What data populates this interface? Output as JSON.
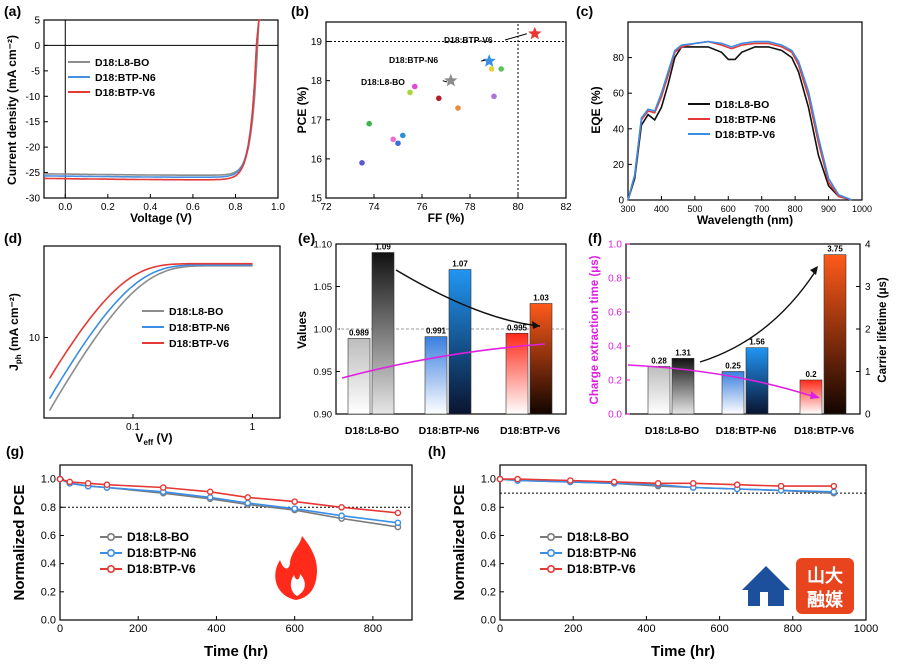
{
  "chart_data": [
    {
      "panel": "(a)",
      "type": "line",
      "xlabel": "Voltage (V)",
      "ylabel": "Current density (mA cm⁻²)",
      "xlim": [
        -0.1,
        1.0
      ],
      "ylim": [
        -30,
        5
      ],
      "xticks": [
        "0.0",
        "0.2",
        "0.4",
        "0.6",
        "0.8",
        "1.0"
      ],
      "yticks": [
        "5",
        "0",
        "-5",
        "-10",
        "-15",
        "-20",
        "-25",
        "-30"
      ],
      "series": [
        {
          "name": "D18:L8-BO",
          "color": "#8c8c8c",
          "jsc": -25.3,
          "voc": 0.91
        },
        {
          "name": "D18:BTP-N6",
          "color": "#4a90e2",
          "jsc": -25.7,
          "voc": 0.905
        },
        {
          "name": "D18:BTP-V6",
          "color": "#e53935",
          "jsc": -26.2,
          "voc": 0.905
        }
      ]
    },
    {
      "panel": "(b)",
      "type": "scatter",
      "xlabel": "FF (%)",
      "ylabel": "PCE (%)",
      "xlim": [
        72,
        82
      ],
      "ylim": [
        15,
        19.5
      ],
      "xticks": [
        "72",
        "74",
        "76",
        "78",
        "80",
        "82"
      ],
      "yticks": [
        "15",
        "16",
        "17",
        "18",
        "19"
      ],
      "ref_x": 80,
      "ref_y": 19,
      "highlight": [
        {
          "name": "D18:BTP-V6",
          "x": 80.7,
          "y": 19.2,
          "color": "#e53935"
        },
        {
          "name": "D18:BTP-N6",
          "x": 78.8,
          "y": 18.5,
          "color": "#3a8ee6"
        },
        {
          "name": "D18:L8-BO",
          "x": 77.2,
          "y": 18.0,
          "color": "#8c8c8c"
        }
      ],
      "points": [
        {
          "x": 73.5,
          "y": 15.9,
          "color": "#5a58d6"
        },
        {
          "x": 73.8,
          "y": 16.9,
          "color": "#3cb54a"
        },
        {
          "x": 74.8,
          "y": 16.5,
          "color": "#f06bd6"
        },
        {
          "x": 75.0,
          "y": 16.4,
          "color": "#3a70d9"
        },
        {
          "x": 75.2,
          "y": 16.6,
          "color": "#2b8fd6"
        },
        {
          "x": 75.5,
          "y": 17.7,
          "color": "#a7d63c"
        },
        {
          "x": 75.7,
          "y": 17.85,
          "color": "#e04ad6"
        },
        {
          "x": 76.7,
          "y": 17.55,
          "color": "#b0202a"
        },
        {
          "x": 77.5,
          "y": 17.3,
          "color": "#f08a3a"
        },
        {
          "x": 78.9,
          "y": 18.3,
          "color": "#e8d23c"
        },
        {
          "x": 79.3,
          "y": 18.3,
          "color": "#5cc25c"
        },
        {
          "x": 79.0,
          "y": 17.6,
          "color": "#b070e0"
        }
      ]
    },
    {
      "panel": "(c)",
      "type": "line",
      "xlabel": "Wavelength (nm)",
      "ylabel": "EQE (%)",
      "xlim": [
        300,
        1000
      ],
      "ylim": [
        0,
        100
      ],
      "xticks": [
        "300",
        "400",
        "500",
        "600",
        "700",
        "800",
        "900",
        "1000"
      ],
      "yticks": [
        "0",
        "20",
        "40",
        "60",
        "80"
      ],
      "series": [
        {
          "name": "D18:L8-BO",
          "color": "#111111",
          "values": [
            [
              300,
              0
            ],
            [
              320,
              12
            ],
            [
              340,
              42
            ],
            [
              360,
              48
            ],
            [
              380,
              45
            ],
            [
              400,
              52
            ],
            [
              420,
              65
            ],
            [
              440,
              80
            ],
            [
              460,
              86
            ],
            [
              500,
              86
            ],
            [
              540,
              86
            ],
            [
              580,
              83
            ],
            [
              600,
              79
            ],
            [
              620,
              79
            ],
            [
              640,
              83
            ],
            [
              680,
              86
            ],
            [
              720,
              86
            ],
            [
              760,
              84
            ],
            [
              790,
              80
            ],
            [
              810,
              72
            ],
            [
              840,
              52
            ],
            [
              870,
              25
            ],
            [
              900,
              8
            ],
            [
              930,
              2
            ],
            [
              970,
              0
            ]
          ]
        },
        {
          "name": "D18:BTP-N6",
          "color": "#e53935",
          "values": [
            [
              300,
              0
            ],
            [
              320,
              14
            ],
            [
              340,
              45
            ],
            [
              360,
              50
            ],
            [
              380,
              49
            ],
            [
              400,
              58
            ],
            [
              420,
              70
            ],
            [
              440,
              83
            ],
            [
              460,
              86
            ],
            [
              500,
              88
            ],
            [
              540,
              89
            ],
            [
              580,
              87
            ],
            [
              610,
              85
            ],
            [
              640,
              87
            ],
            [
              680,
              88
            ],
            [
              720,
              88
            ],
            [
              760,
              86
            ],
            [
              790,
              83
            ],
            [
              810,
              76
            ],
            [
              840,
              58
            ],
            [
              870,
              32
            ],
            [
              900,
              10
            ],
            [
              930,
              2
            ],
            [
              970,
              0
            ]
          ]
        },
        {
          "name": "D18:BTP-V6",
          "color": "#3a8ee6",
          "values": [
            [
              300,
              0
            ],
            [
              320,
              14
            ],
            [
              340,
              46
            ],
            [
              360,
              51
            ],
            [
              380,
              50
            ],
            [
              400,
              60
            ],
            [
              420,
              72
            ],
            [
              440,
              84
            ],
            [
              460,
              87
            ],
            [
              500,
              88
            ],
            [
              540,
              89
            ],
            [
              580,
              88
            ],
            [
              610,
              86
            ],
            [
              640,
              88
            ],
            [
              680,
              89
            ],
            [
              720,
              89
            ],
            [
              760,
              87
            ],
            [
              790,
              84
            ],
            [
              810,
              78
            ],
            [
              840,
              61
            ],
            [
              870,
              35
            ],
            [
              900,
              12
            ],
            [
              930,
              3
            ],
            [
              970,
              0
            ]
          ]
        }
      ]
    },
    {
      "panel": "(d)",
      "type": "line",
      "xlabel": "V",
      "xlabel_sub": "eff",
      "xlabel_unit": " (V)",
      "ylabel": "J",
      "ylabel_sub": "ph",
      "ylabel_unit": " (mA cm⁻²)",
      "xscale": "log",
      "yscale": "log",
      "xticks": [
        "0.1",
        "1"
      ],
      "yticks": [
        "10"
      ],
      "series": [
        {
          "name": "D18:L8-BO",
          "color": "#8c8c8c"
        },
        {
          "name": "D18:BTP-N6",
          "color": "#3a8ee6"
        },
        {
          "name": "D18:BTP-V6",
          "color": "#e53935"
        }
      ]
    },
    {
      "panel": "(e)",
      "type": "bar",
      "ylabel": "Values",
      "ylim": [
        0.9,
        1.1
      ],
      "yticks": [
        "0.90",
        "0.95",
        "1.00",
        "1.05",
        "1.10"
      ],
      "categories": [
        "D18:L8-BO",
        "D18:BTP-N6",
        "D18:BTP-V6"
      ],
      "series": [
        {
          "name": "left",
          "values": [
            0.989,
            0.991,
            0.995
          ],
          "labels": [
            "0.989",
            "0.991",
            "0.995"
          ]
        },
        {
          "name": "right",
          "values": [
            1.09,
            1.07,
            1.03
          ],
          "labels": [
            "1.09",
            "1.07",
            "1.03"
          ]
        }
      ]
    },
    {
      "panel": "(f)",
      "type": "bar",
      "ylabel_left": "Charge extraction time (μs)",
      "ylabel_right": "Carrier lifetime (μs)",
      "ylim_left": [
        0,
        1.0
      ],
      "ylim_right": [
        0,
        4
      ],
      "yticks_left": [
        "0.0",
        "0.2",
        "0.4",
        "0.6",
        "0.8",
        "1.0"
      ],
      "yticks_right": [
        "0",
        "1",
        "2",
        "3",
        "4"
      ],
      "categories": [
        "D18:L8-BO",
        "D18:BTP-N6",
        "D18:BTP-V6"
      ],
      "series": [
        {
          "name": "Charge extraction time",
          "axis": "left",
          "values": [
            0.28,
            0.25,
            0.2
          ],
          "labels": [
            "0.28",
            "0.25",
            "0.2"
          ]
        },
        {
          "name": "Carrier lifetime",
          "axis": "right",
          "values": [
            1.31,
            1.56,
            3.75
          ],
          "labels": [
            "1.31",
            "1.56",
            "3.75"
          ]
        }
      ]
    },
    {
      "panel": "(g)",
      "type": "line",
      "xlabel": "Time (hr)",
      "ylabel": "Normalized PCE",
      "xlim": [
        0,
        900
      ],
      "ylim": [
        0,
        1.1
      ],
      "xticks": [
        "0",
        "200",
        "400",
        "600",
        "800"
      ],
      "yticks": [
        "0.0",
        "0.2",
        "0.4",
        "0.6",
        "0.8",
        "1.0"
      ],
      "ref_y": 0.8,
      "series": [
        {
          "name": "D18:L8-BO",
          "color": "#7a7a7a",
          "x": [
            0,
            25,
            72,
            120,
            264,
            384,
            480,
            600,
            720,
            864
          ],
          "y": [
            1.0,
            0.97,
            0.95,
            0.94,
            0.9,
            0.86,
            0.82,
            0.78,
            0.72,
            0.66
          ]
        },
        {
          "name": "D18:BTP-N6",
          "color": "#3a8ee6",
          "x": [
            0,
            25,
            72,
            120,
            264,
            384,
            480,
            600,
            720,
            864
          ],
          "y": [
            1.0,
            0.97,
            0.95,
            0.94,
            0.91,
            0.87,
            0.83,
            0.79,
            0.74,
            0.69
          ]
        },
        {
          "name": "D18:BTP-V6",
          "color": "#e53935",
          "x": [
            0,
            25,
            72,
            120,
            264,
            384,
            480,
            600,
            720,
            864
          ],
          "y": [
            1.0,
            0.98,
            0.97,
            0.96,
            0.94,
            0.91,
            0.87,
            0.84,
            0.8,
            0.76
          ]
        }
      ]
    },
    {
      "panel": "(h)",
      "type": "line",
      "xlabel": "Time (hr)",
      "ylabel": "Normalized PCE",
      "xlim": [
        0,
        1000
      ],
      "ylim": [
        0,
        1.1
      ],
      "xticks": [
        "0",
        "200",
        "400",
        "600",
        "800",
        "1000"
      ],
      "yticks": [
        "0.0",
        "0.2",
        "0.4",
        "0.6",
        "0.8",
        "1.0"
      ],
      "ref_y": 0.9,
      "series": [
        {
          "name": "D18:L8-BO",
          "color": "#7a7a7a",
          "x": [
            0,
            48,
            192,
            312,
            432,
            528,
            648,
            768,
            912
          ],
          "y": [
            1.0,
            0.99,
            0.98,
            0.97,
            0.95,
            0.94,
            0.93,
            0.92,
            0.9
          ]
        },
        {
          "name": "D18:BTP-N6",
          "color": "#3a8ee6",
          "x": [
            0,
            48,
            192,
            312,
            432,
            528,
            648,
            768,
            912
          ],
          "y": [
            1.0,
            0.99,
            0.98,
            0.97,
            0.96,
            0.94,
            0.93,
            0.92,
            0.91
          ]
        },
        {
          "name": "D18:BTP-V6",
          "color": "#e53935",
          "x": [
            0,
            48,
            192,
            312,
            432,
            528,
            648,
            768,
            912
          ],
          "y": [
            1.0,
            1.0,
            0.99,
            0.98,
            0.97,
            0.97,
            0.96,
            0.95,
            0.95
          ]
        }
      ]
    }
  ],
  "watermark": {
    "text_top": "山大",
    "text_bottom": "融媒"
  }
}
